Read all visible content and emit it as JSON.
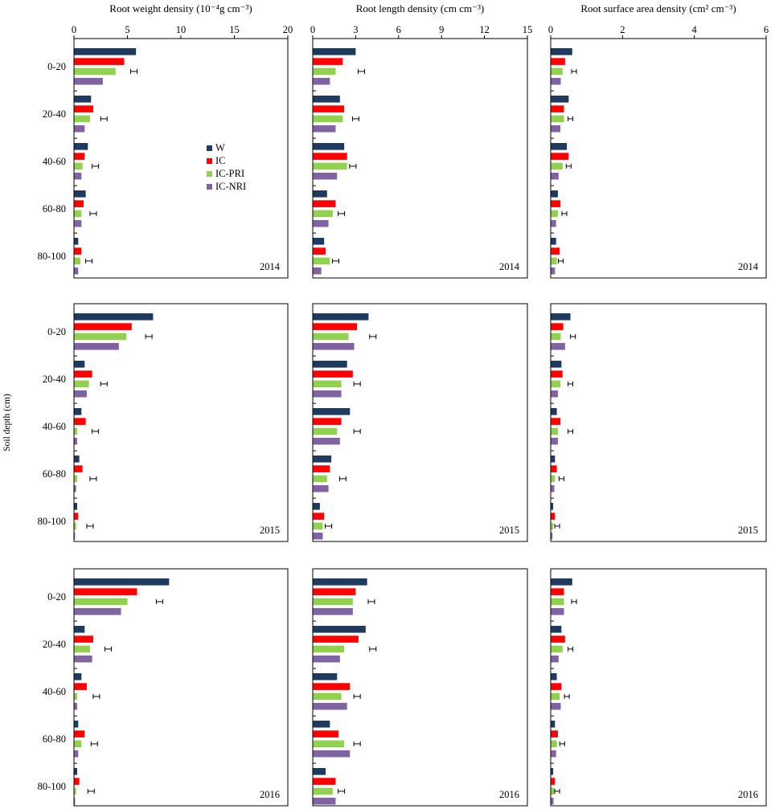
{
  "chart_data": {
    "type": "bar",
    "orientation": "horizontal",
    "ylabel": "Soil depth (cm)",
    "categories": [
      "0-20",
      "20-40",
      "40-60",
      "60-80",
      "80-100"
    ],
    "legend": {
      "placement": "inside left panel of first row",
      "entries": [
        {
          "name": "W",
          "color": "#1f3a5f"
        },
        {
          "name": "IC",
          "color": "#ff0000"
        },
        {
          "name": "IC-PRI",
          "color": "#92d050"
        },
        {
          "name": "IC-NRI",
          "color": "#8064a2"
        }
      ]
    },
    "grid": false,
    "columns": [
      {
        "title": "Root weight density  (10⁻⁴g cm⁻³)",
        "xlim": [
          0,
          20
        ],
        "ticks": [
          "0",
          "5",
          "10",
          "15",
          "20"
        ]
      },
      {
        "title": "Root length density  (cm cm⁻³)",
        "xlim": [
          0,
          15
        ],
        "ticks": [
          "0",
          "3",
          "6",
          "9",
          "12",
          "15"
        ]
      },
      {
        "title": "Root surface area density  (cm² cm⁻³)",
        "xlim": [
          0,
          6
        ],
        "ticks": [
          "0",
          "2",
          "4",
          "6"
        ]
      }
    ],
    "rows": [
      {
        "year": "2014",
        "panels": [
          {
            "W": [
              5.8,
              1.6,
              1.3,
              1.1,
              0.4
            ],
            "IC": [
              4.7,
              1.8,
              1.0,
              0.9,
              0.7
            ],
            "IC-PRI": [
              3.9,
              1.5,
              0.8,
              0.7,
              0.6
            ],
            "IC-NRI": [
              2.7,
              1.0,
              0.7,
              0.7,
              0.4
            ],
            "lsd": [
              5.6,
              2.8,
              2.0,
              1.8,
              1.4
            ]
          },
          {
            "W": [
              3.0,
              1.9,
              2.2,
              1.0,
              0.8
            ],
            "IC": [
              2.1,
              2.2,
              2.4,
              1.6,
              0.9
            ],
            "IC-PRI": [
              1.6,
              2.1,
              2.4,
              1.4,
              1.2
            ],
            "IC-NRI": [
              1.2,
              1.6,
              1.7,
              1.1,
              0.6
            ],
            "lsd": [
              3.4,
              3.0,
              2.8,
              2.0,
              1.6
            ]
          },
          {
            "W": [
              0.6,
              0.5,
              0.45,
              0.2,
              0.15
            ],
            "IC": [
              0.4,
              0.37,
              0.5,
              0.27,
              0.25
            ],
            "IC-PRI": [
              0.33,
              0.37,
              0.33,
              0.2,
              0.17
            ],
            "IC-NRI": [
              0.28,
              0.27,
              0.22,
              0.15,
              0.12
            ],
            "lsd": [
              0.65,
              0.55,
              0.5,
              0.38,
              0.28
            ]
          }
        ]
      },
      {
        "year": "2015",
        "panels": [
          {
            "W": [
              7.4,
              1.0,
              0.7,
              0.5,
              0.3
            ],
            "IC": [
              5.4,
              1.7,
              1.1,
              0.8,
              0.4
            ],
            "IC-PRI": [
              4.9,
              1.4,
              0.3,
              0.3,
              0.2
            ],
            "IC-NRI": [
              4.2,
              1.2,
              0.3,
              0.2,
              0.1
            ],
            "lsd": [
              7.0,
              2.8,
              2.0,
              1.8,
              1.5
            ]
          },
          {
            "W": [
              3.9,
              2.4,
              2.6,
              1.3,
              0.5
            ],
            "IC": [
              3.1,
              2.8,
              2.0,
              1.2,
              0.8
            ],
            "IC-PRI": [
              2.5,
              2.0,
              1.7,
              1.0,
              0.7
            ],
            "IC-NRI": [
              2.9,
              2.0,
              1.9,
              1.1,
              0.7
            ],
            "lsd": [
              4.2,
              3.1,
              3.1,
              2.1,
              1.1
            ]
          },
          {
            "W": [
              0.55,
              0.3,
              0.17,
              0.12,
              0.07
            ],
            "IC": [
              0.35,
              0.33,
              0.27,
              0.17,
              0.12
            ],
            "IC-PRI": [
              0.28,
              0.27,
              0.2,
              0.12,
              0.07
            ],
            "IC-NRI": [
              0.4,
              0.2,
              0.2,
              0.1,
              0.05
            ],
            "lsd": [
              0.62,
              0.55,
              0.55,
              0.3,
              0.18
            ]
          }
        ]
      },
      {
        "year": "2016",
        "panels": [
          {
            "W": [
              8.9,
              1.0,
              0.7,
              0.4,
              0.3
            ],
            "IC": [
              5.9,
              1.8,
              1.2,
              1.0,
              0.5
            ],
            "IC-PRI": [
              5.0,
              1.5,
              0.3,
              0.7,
              0.2
            ],
            "IC-NRI": [
              4.4,
              1.7,
              0.3,
              0.4,
              0.1
            ],
            "lsd": [
              8.0,
              3.2,
              2.1,
              1.9,
              1.6
            ]
          },
          {
            "W": [
              3.8,
              3.7,
              1.7,
              1.2,
              0.9
            ],
            "IC": [
              3.0,
              3.2,
              2.6,
              1.8,
              1.6
            ],
            "IC-PRI": [
              2.8,
              2.2,
              2.0,
              2.2,
              1.4
            ],
            "IC-NRI": [
              2.8,
              1.9,
              2.4,
              2.6,
              1.6
            ],
            "lsd": [
              4.1,
              4.2,
              3.1,
              3.1,
              2.0
            ]
          },
          {
            "W": [
              0.6,
              0.3,
              0.17,
              0.12,
              0.07
            ],
            "IC": [
              0.37,
              0.4,
              0.3,
              0.2,
              0.12
            ],
            "IC-PRI": [
              0.37,
              0.33,
              0.25,
              0.17,
              0.1
            ],
            "IC-NRI": [
              0.37,
              0.22,
              0.28,
              0.15,
              0.08
            ],
            "lsd": [
              0.65,
              0.55,
              0.45,
              0.32,
              0.18
            ]
          }
        ]
      }
    ]
  }
}
